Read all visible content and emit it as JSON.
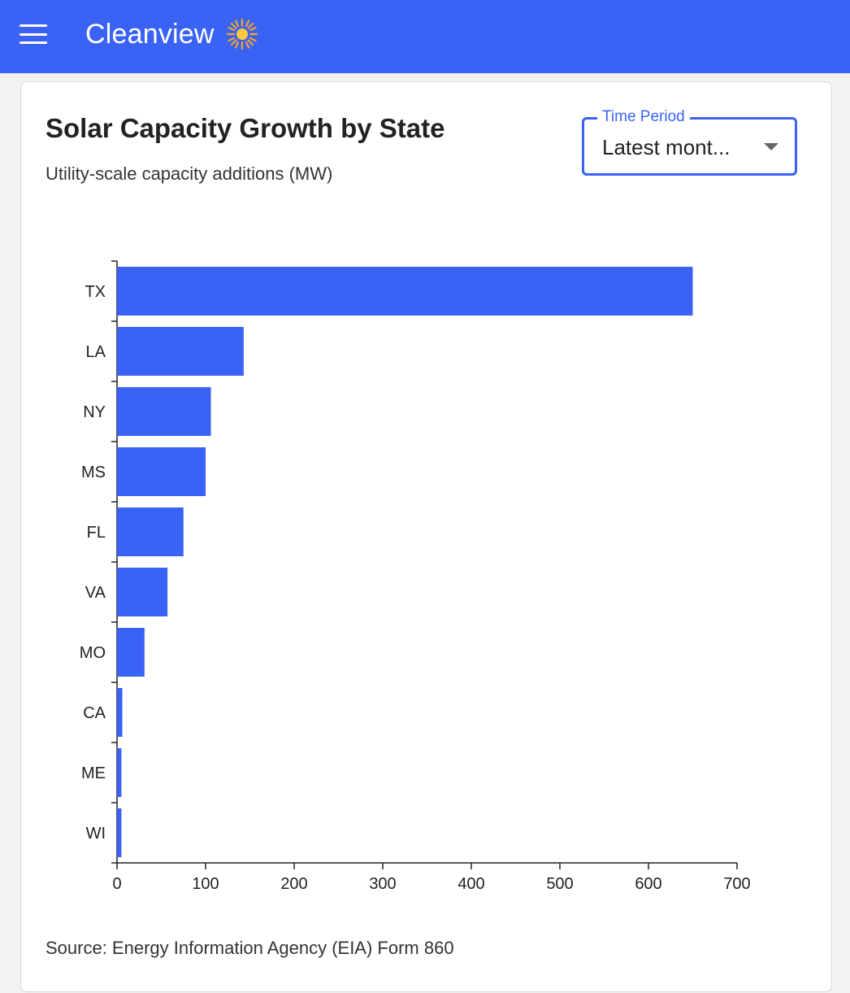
{
  "header": {
    "app_name": "Cleanview",
    "menu_icon": "hamburger-menu-icon",
    "logo_icon": "sun-icon",
    "color": "#3a63f6"
  },
  "card": {
    "title": "Solar Capacity Growth by State",
    "subtitle": "Utility-scale capacity additions (MW)",
    "time_period": {
      "label": "Time Period",
      "value": "Latest mont..."
    },
    "source": "Source: Energy Information Agency (EIA) Form 860"
  },
  "chart_data": {
    "type": "bar",
    "orientation": "horizontal",
    "title": "Solar Capacity Growth by State",
    "subtitle": "Utility-scale capacity additions (MW)",
    "categories": [
      "TX",
      "LA",
      "NY",
      "MS",
      "FL",
      "VA",
      "MO",
      "CA",
      "ME",
      "WI"
    ],
    "values": [
      650,
      143,
      106,
      100,
      75,
      57,
      31,
      6,
      5,
      5
    ],
    "xlim": [
      0,
      700
    ],
    "xticks": [
      0,
      100,
      200,
      300,
      400,
      500,
      600,
      700
    ],
    "xlabel": "",
    "ylabel": "",
    "bar_color": "#3a63f6",
    "grid": false
  }
}
